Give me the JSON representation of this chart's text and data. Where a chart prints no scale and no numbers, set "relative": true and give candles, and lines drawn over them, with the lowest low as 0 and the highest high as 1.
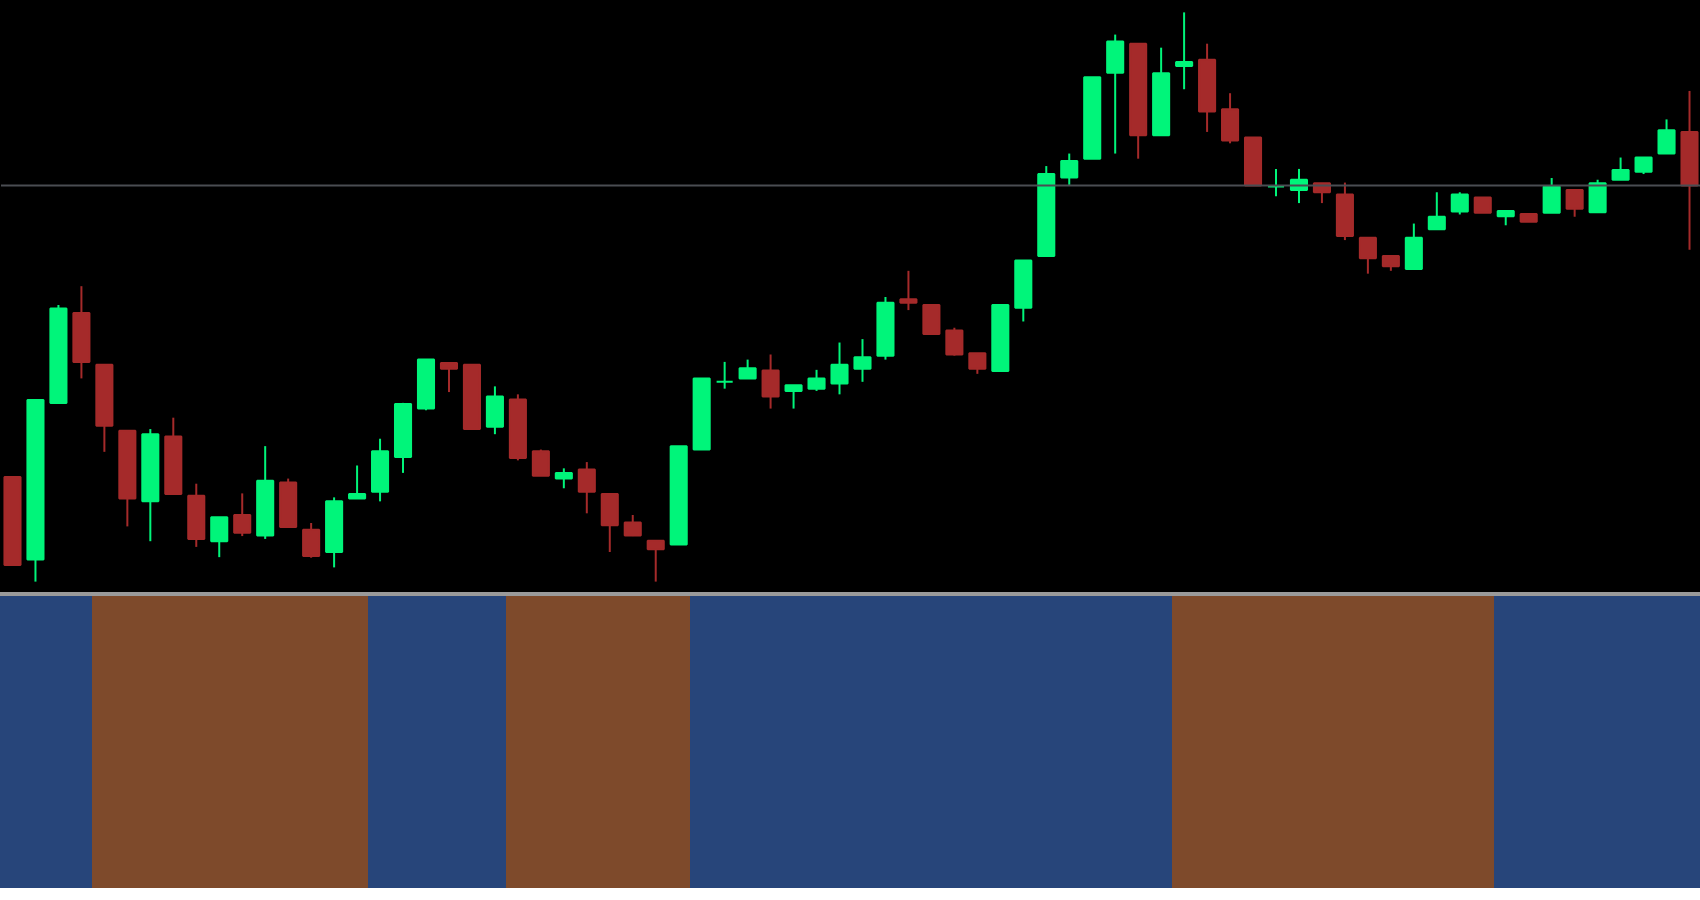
{
  "chart_data": {
    "type": "candlestick",
    "relative": true,
    "grid": false,
    "categories": [
      null,
      null,
      null,
      null,
      null,
      null,
      null,
      null,
      null,
      null,
      null,
      null,
      null,
      null,
      null,
      null,
      null,
      null,
      null,
      null,
      null,
      null,
      null,
      null,
      null,
      null,
      null,
      null,
      null,
      null,
      null,
      null,
      null,
      null,
      null,
      null,
      null,
      null,
      null,
      null,
      null,
      null,
      null,
      null,
      null,
      null,
      null,
      null,
      null,
      null,
      null,
      null,
      null,
      null,
      null,
      null,
      null,
      null,
      null,
      null,
      null,
      null,
      null,
      null,
      null,
      null,
      null,
      null,
      null,
      null,
      null,
      null,
      null,
      null
    ],
    "ohlc": [
      [
        0.184,
        0.184,
        0.029,
        0.029
      ],
      [
        0.039,
        0.319,
        0.0,
        0.319
      ],
      [
        0.314,
        0.486,
        0.314,
        0.48
      ],
      [
        0.472,
        0.519,
        0.357,
        0.386
      ],
      [
        0.381,
        0.381,
        0.228,
        0.274
      ],
      [
        0.265,
        0.265,
        0.097,
        0.146
      ],
      [
        0.141,
        0.268,
        0.071,
        0.259
      ],
      [
        0.255,
        0.288,
        0.154,
        0.154
      ],
      [
        0.151,
        0.172,
        0.061,
        0.075
      ],
      [
        0.071,
        0.113,
        0.043,
        0.113
      ],
      [
        0.117,
        0.155,
        0.08,
        0.086
      ],
      [
        0.081,
        0.238,
        0.075,
        0.177
      ],
      [
        0.174,
        0.181,
        0.096,
        0.096
      ],
      [
        0.091,
        0.103,
        0.042,
        0.045
      ],
      [
        0.052,
        0.148,
        0.025,
        0.141
      ],
      [
        0.146,
        0.204,
        0.146,
        0.154
      ],
      [
        0.158,
        0.251,
        0.141,
        0.229
      ],
      [
        0.219,
        0.314,
        0.191,
        0.312
      ],
      [
        0.304,
        0.39,
        0.301,
        0.39
      ],
      [
        0.384,
        0.384,
        0.333,
        0.374
      ],
      [
        0.381,
        0.381,
        0.268,
        0.268
      ],
      [
        0.272,
        0.343,
        0.259,
        0.325
      ],
      [
        0.32,
        0.329,
        0.213,
        0.217
      ],
      [
        0.229,
        0.232,
        0.186,
        0.186
      ],
      [
        0.181,
        0.199,
        0.164,
        0.191
      ],
      [
        0.197,
        0.21,
        0.12,
        0.158
      ],
      [
        0.154,
        0.154,
        0.052,
        0.099
      ],
      [
        0.104,
        0.117,
        0.08,
        0.081
      ],
      [
        0.072,
        0.072,
        0.0,
        0.057
      ],
      [
        0.065,
        0.238,
        0.065,
        0.238
      ],
      [
        0.232,
        0.357,
        0.232,
        0.357
      ],
      [
        0.351,
        0.386,
        0.339,
        0.351
      ],
      [
        0.357,
        0.39,
        0.357,
        0.375
      ],
      [
        0.371,
        0.399,
        0.304,
        0.325
      ],
      [
        0.335,
        0.345,
        0.304,
        0.345
      ],
      [
        0.339,
        0.372,
        0.335,
        0.357
      ],
      [
        0.348,
        0.42,
        0.329,
        0.381
      ],
      [
        0.374,
        0.426,
        0.351,
        0.394
      ],
      [
        0.397,
        0.5,
        0.39,
        0.49
      ],
      [
        0.496,
        0.546,
        0.477,
        0.49
      ],
      [
        0.486,
        0.486,
        0.435,
        0.435
      ],
      [
        0.441,
        0.446,
        0.397,
        0.399
      ],
      [
        0.401,
        0.401,
        0.365,
        0.374
      ],
      [
        0.37,
        0.486,
        0.37,
        0.486
      ],
      [
        0.481,
        0.564,
        0.457,
        0.564
      ],
      [
        0.572,
        0.73,
        0.572,
        0.716
      ],
      [
        0.71,
        0.752,
        0.697,
        0.739
      ],
      [
        0.743,
        0.886,
        0.743,
        0.886
      ],
      [
        0.894,
        0.961,
        0.752,
        0.949
      ],
      [
        0.945,
        0.945,
        0.743,
        0.784
      ],
      [
        0.784,
        0.938,
        0.784,
        0.893
      ],
      [
        0.906,
        1.0,
        0.865,
        0.913
      ],
      [
        0.917,
        0.945,
        0.79,
        0.826
      ],
      [
        0.83,
        0.858,
        0.77,
        0.775
      ],
      [
        0.78,
        0.78,
        0.696,
        0.696
      ],
      [
        0.694,
        0.725,
        0.677,
        0.694
      ],
      [
        0.688,
        0.725,
        0.665,
        0.706
      ],
      [
        0.7,
        0.7,
        0.665,
        0.684
      ],
      [
        0.68,
        0.701,
        0.6,
        0.607
      ],
      [
        0.604,
        0.604,
        0.541,
        0.568
      ],
      [
        0.572,
        0.572,
        0.546,
        0.554
      ],
      [
        0.549,
        0.629,
        0.549,
        0.604
      ],
      [
        0.619,
        0.684,
        0.619,
        0.641
      ],
      [
        0.65,
        0.684,
        0.645,
        0.68
      ],
      [
        0.675,
        0.675,
        0.648,
        0.648
      ],
      [
        0.642,
        0.651,
        0.626,
        0.651
      ],
      [
        0.646,
        0.646,
        0.632,
        0.632
      ],
      [
        0.648,
        0.709,
        0.648,
        0.694
      ],
      [
        0.688,
        0.688,
        0.641,
        0.655
      ],
      [
        0.649,
        0.706,
        0.649,
        0.7
      ],
      [
        0.706,
        0.745,
        0.706,
        0.723
      ],
      [
        0.72,
        0.745,
        0.716,
        0.745
      ],
      [
        0.752,
        0.812,
        0.752,
        0.793
      ],
      [
        0.79,
        0.862,
        0.583,
        0.696
      ]
    ],
    "colors": [
      "#a52a2a",
      "#00f57a",
      "#00f57a",
      "#a52a2a",
      "#a52a2a",
      "#a52a2a",
      "#00f57a",
      "#a52a2a",
      "#a52a2a",
      "#00f57a",
      "#a52a2a",
      "#00f57a",
      "#a52a2a",
      "#a52a2a",
      "#00f57a",
      "#00f57a",
      "#00f57a",
      "#00f57a",
      "#00f57a",
      "#a52a2a",
      "#a52a2a",
      "#00f57a",
      "#a52a2a",
      "#a52a2a",
      "#00f57a",
      "#a52a2a",
      "#a52a2a",
      "#a52a2a",
      "#a52a2a",
      "#00f57a",
      "#00f57a",
      "#00f57a",
      "#00f57a",
      "#a52a2a",
      "#00f57a",
      "#00f57a",
      "#00f57a",
      "#00f57a",
      "#00f57a",
      "#a52a2a",
      "#a52a2a",
      "#a52a2a",
      "#a52a2a",
      "#00f57a",
      "#00f57a",
      "#00f57a",
      "#00f57a",
      "#00f57a",
      "#00f57a",
      "#a52a2a",
      "#00f57a",
      "#00f57a",
      "#a52a2a",
      "#a52a2a",
      "#a52a2a",
      "#00f57a",
      "#00f57a",
      "#a52a2a",
      "#a52a2a",
      "#a52a2a",
      "#a52a2a",
      "#00f57a",
      "#00f57a",
      "#00f57a",
      "#a52a2a",
      "#00f57a",
      "#a52a2a",
      "#00f57a",
      "#a52a2a",
      "#00f57a",
      "#00f57a",
      "#00f57a",
      "#00f57a",
      "#a52a2a"
    ],
    "ref_lines": [
      {
        "axis": "y",
        "value": 0.696,
        "color": "#4a4d52"
      }
    ]
  }
}
